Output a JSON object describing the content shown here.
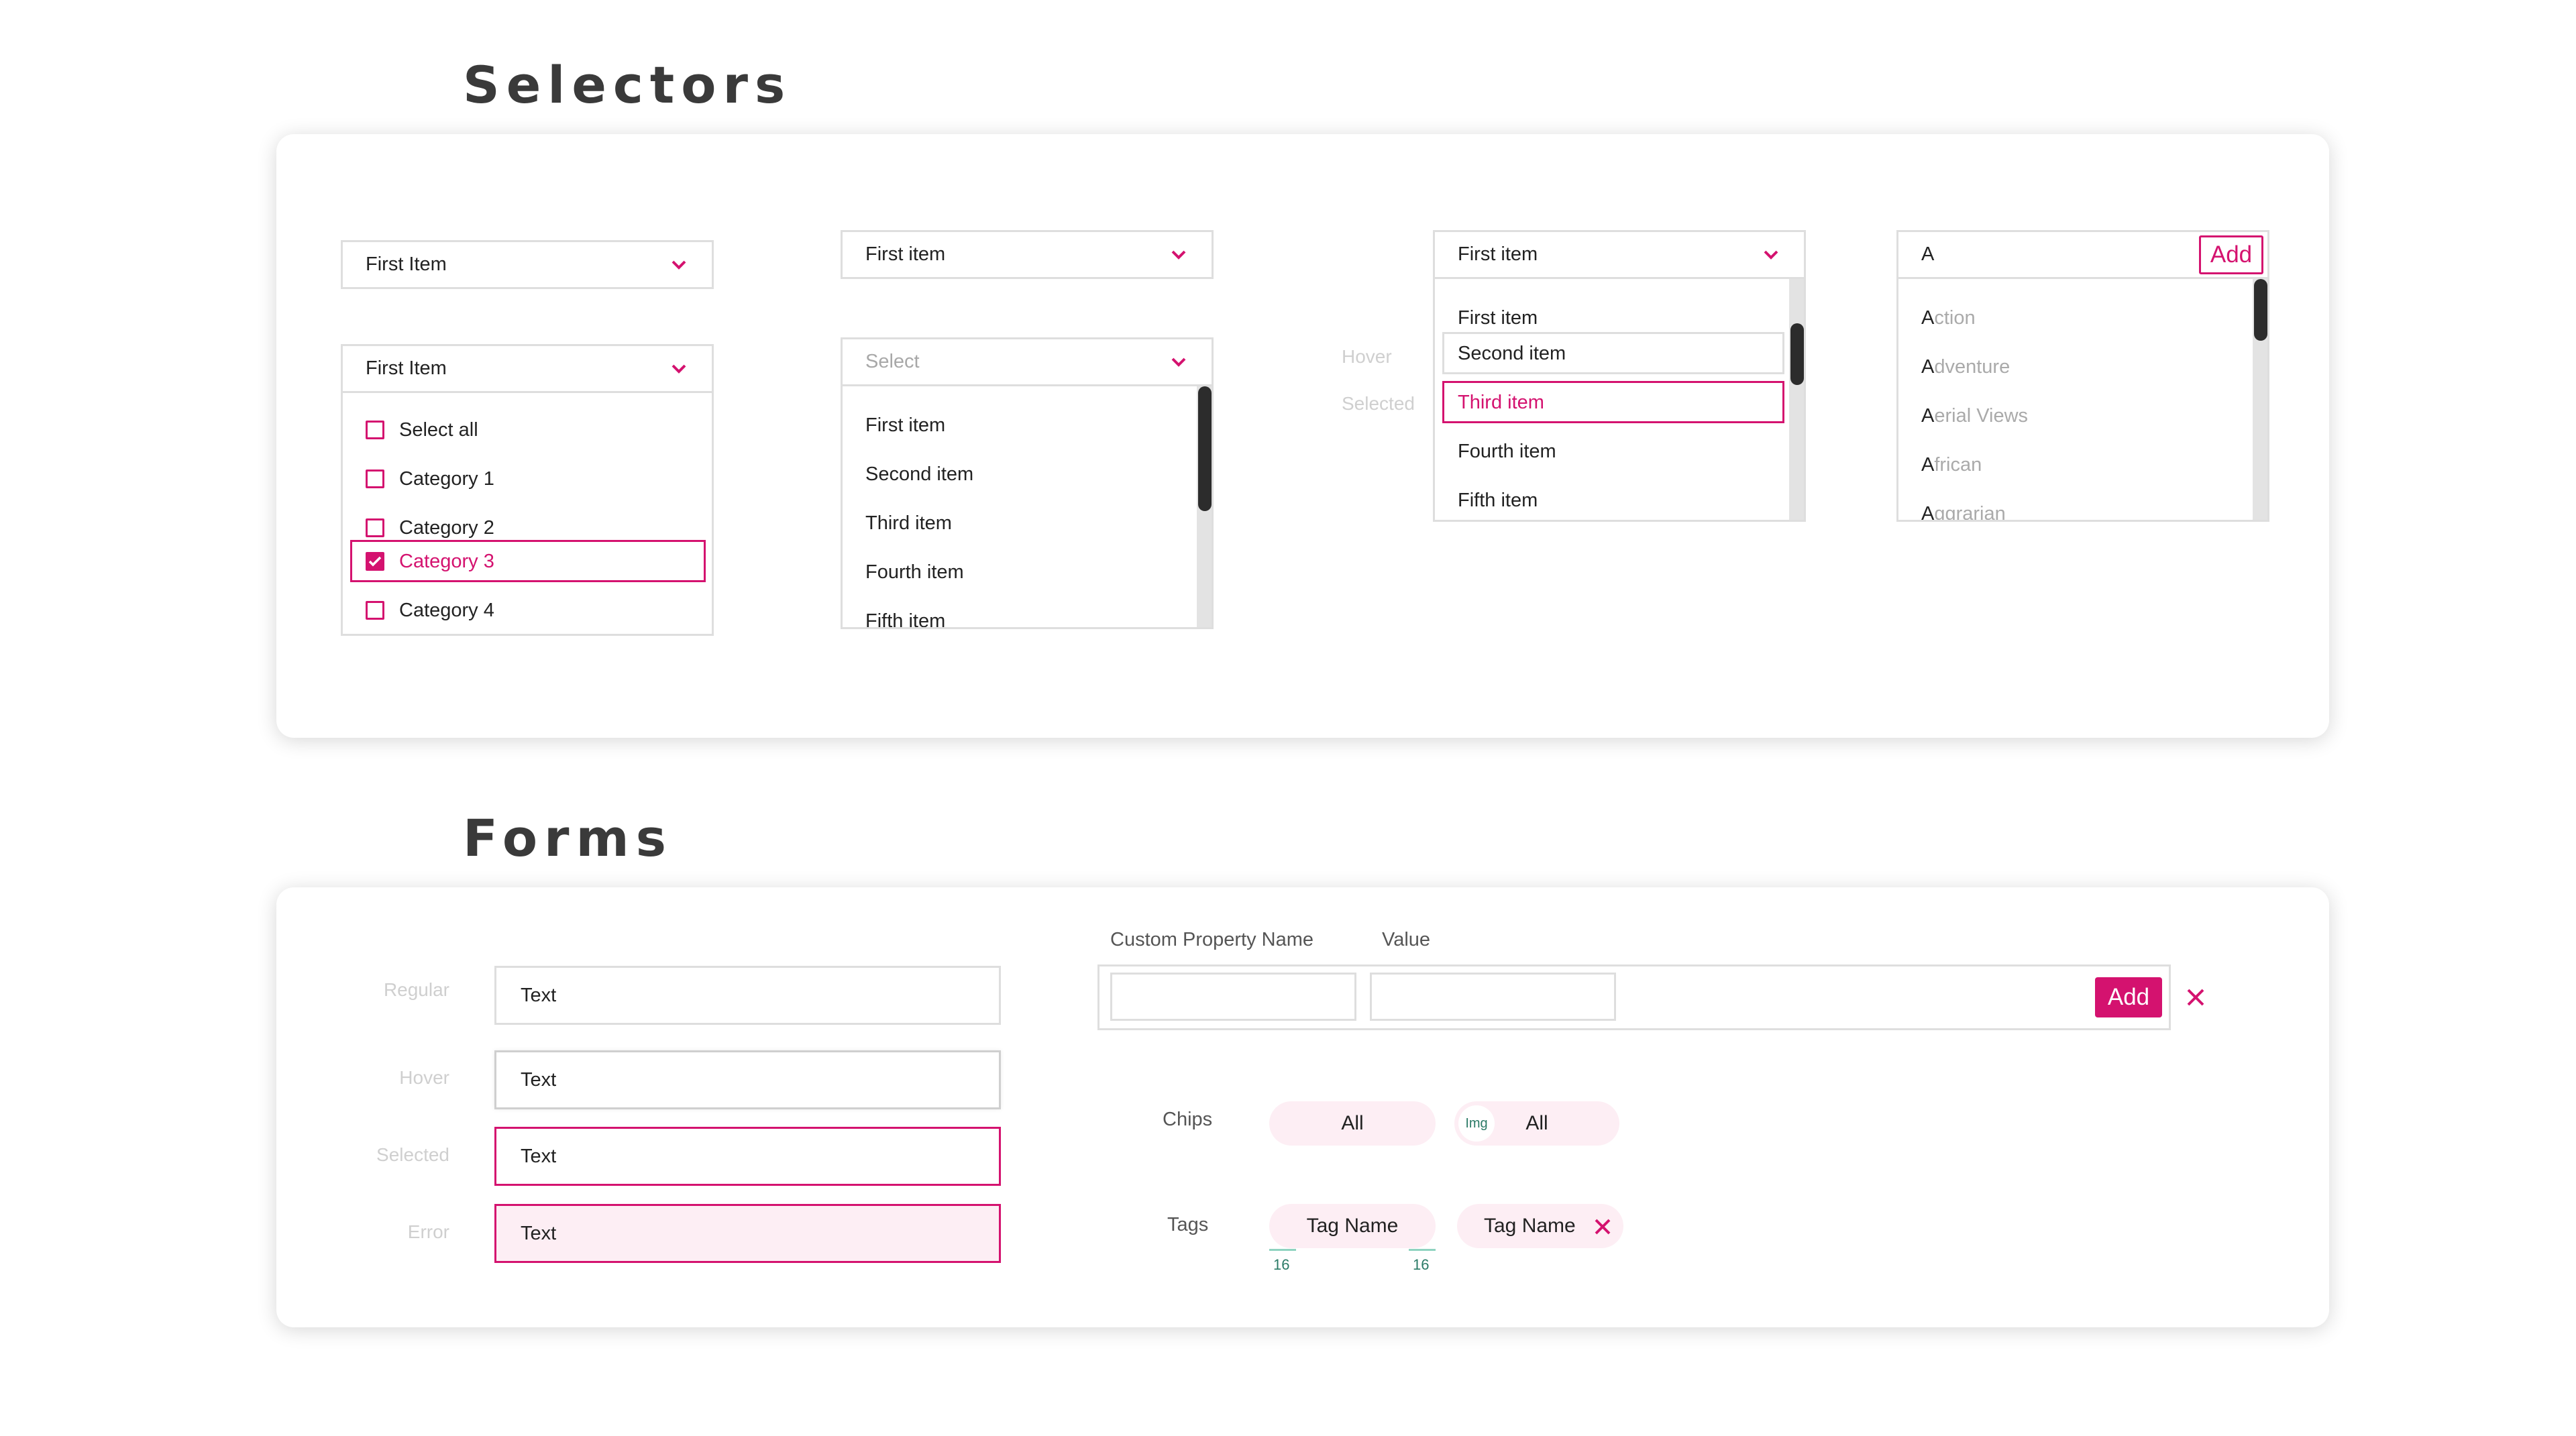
{
  "colors": {
    "accent": "#d4126f",
    "accent_light": "#fdeef4",
    "border": "#dedede",
    "muted_text": "#cfcfcf",
    "scroll_thumb": "#2c2c2c"
  },
  "selectors": {
    "title": "Selectors",
    "dropdown_collapsed": {
      "value": "First Item"
    },
    "multi_select": {
      "value": "First Item",
      "options": [
        {
          "label": "Select all",
          "checked": false
        },
        {
          "label": "Category 1",
          "checked": false
        },
        {
          "label": "Category 2",
          "checked": false
        },
        {
          "label": "Category 3",
          "checked": true
        },
        {
          "label": "Category 4",
          "checked": false
        }
      ]
    },
    "dropdown_simple": {
      "value": "First item"
    },
    "dropdown_open": {
      "placeholder": "Select",
      "options": [
        "First item",
        "Second item",
        "Third item",
        "Fourth item",
        "Fifth item"
      ]
    },
    "dropdown_states": {
      "value": "First item",
      "hover_label": "Hover",
      "selected_label": "Selected",
      "options": [
        "First item",
        "Second item",
        "Third item",
        "Fourth item",
        "Fifth item"
      ]
    },
    "autocomplete": {
      "query": "A",
      "add_label": "Add",
      "suggestions": [
        {
          "match": "A",
          "rest": "ction"
        },
        {
          "match": "A",
          "rest": "dventure"
        },
        {
          "match": "A",
          "rest": "erial Views"
        },
        {
          "match": "A",
          "rest": "frican"
        },
        {
          "match": "A",
          "rest": "ggrarian"
        }
      ]
    }
  },
  "forms": {
    "title": "Forms",
    "inputs": [
      {
        "label": "Regular",
        "value": "Text"
      },
      {
        "label": "Hover",
        "value": "Text"
      },
      {
        "label": "Selected",
        "value": "Text"
      },
      {
        "label": "Error",
        "value": "Text"
      }
    ],
    "custom_property": {
      "name_header": "Custom Property Name",
      "value_header": "Value",
      "name_value": "",
      "value_value": "",
      "add_label": "Add"
    },
    "chips": {
      "label": "Chips",
      "items": [
        {
          "text": "All"
        },
        {
          "text": "All",
          "img_label": "Img"
        }
      ]
    },
    "tags": {
      "label": "Tags",
      "items": [
        {
          "text": "Tag Name"
        },
        {
          "text": "Tag Name"
        }
      ],
      "spacing_left": "16",
      "spacing_right": "16"
    }
  }
}
